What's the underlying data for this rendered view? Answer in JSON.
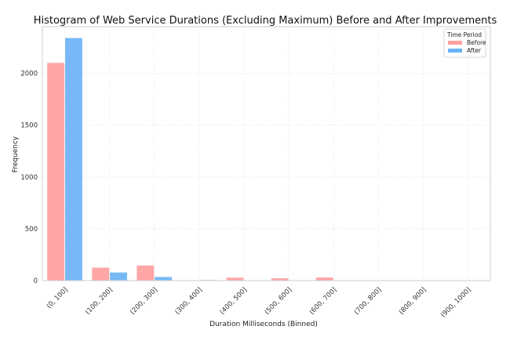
{
  "chart_data": {
    "type": "bar",
    "title": "Histogram of Web Service Durations (Excluding Maximum) Before and After Improvements",
    "xlabel": "Duration Milliseconds (Binned)",
    "ylabel": "Frequency",
    "categories": [
      "(0, 100]",
      "(100, 200]",
      "(200, 300]",
      "(300, 400]",
      "(400, 500]",
      "(500, 600]",
      "(600, 700]",
      "(700, 800]",
      "(800, 900]",
      "(900, 1000]"
    ],
    "series": [
      {
        "name": "Before",
        "color": "#ff9e9e",
        "values": [
          2100,
          125,
          145,
          3,
          28,
          22,
          30,
          2,
          2,
          3
        ]
      },
      {
        "name": "After",
        "color": "#6bb3f5",
        "values": [
          2340,
          78,
          35,
          5,
          2,
          1,
          1,
          1,
          1,
          2
        ]
      }
    ],
    "ylim": [
      0,
      2450
    ],
    "yticks": [
      0,
      500,
      1000,
      1500,
      2000
    ],
    "grid": true,
    "legend": {
      "title": "Time Period",
      "placement": "top-right"
    }
  }
}
